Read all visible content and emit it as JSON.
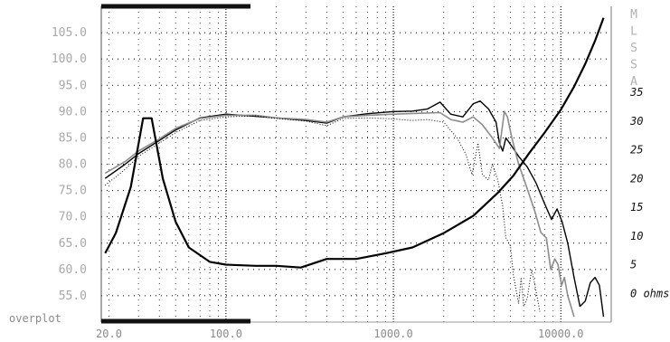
{
  "chart_data": {
    "type": "line",
    "xscale": "log",
    "xlim": [
      18,
      20000
    ],
    "ylim_left": [
      50,
      110
    ],
    "ylim_right_ohms": [
      -5,
      50
    ],
    "grid": true,
    "left_ticks": [
      "105.0",
      "100.0",
      "95.0",
      "90.0",
      "85.0",
      "80.0",
      "75.0",
      "70.0",
      "65.0",
      "60.0",
      "55.0"
    ],
    "left_tick_values": [
      105,
      100,
      95,
      90,
      85,
      80,
      75,
      70,
      65,
      60,
      55
    ],
    "right_ticks": [
      "35",
      "30",
      "25",
      "20",
      "15",
      "10",
      "5",
      "0 ohms"
    ],
    "right_tick_values": [
      35,
      30,
      25,
      20,
      15,
      10,
      5,
      0
    ],
    "x_ticks": [
      "20.0",
      "100.0",
      "1000.0",
      "10000.0"
    ],
    "x_tick_values": [
      20,
      100,
      1000,
      10000
    ],
    "side_label": [
      "M",
      "L",
      "S",
      "S",
      "A"
    ],
    "overplot_label": "overplot",
    "series": [
      {
        "style": "solid-black",
        "points": [
          [
            19,
            77.3
          ],
          [
            25,
            80
          ],
          [
            30,
            82
          ],
          [
            40,
            84.5
          ],
          [
            50,
            86.5
          ],
          [
            70,
            88.8
          ],
          [
            100,
            89.5
          ],
          [
            150,
            89.1
          ],
          [
            200,
            88.8
          ],
          [
            300,
            88.3
          ],
          [
            400,
            87.8
          ],
          [
            500,
            89
          ],
          [
            700,
            89.6
          ],
          [
            1000,
            90
          ],
          [
            1300,
            90.1
          ],
          [
            1600,
            90.5
          ],
          [
            1900,
            91.8
          ],
          [
            2200,
            89.5
          ],
          [
            2600,
            89
          ],
          [
            3000,
            91.5
          ],
          [
            3300,
            92
          ],
          [
            3700,
            90.5
          ],
          [
            4100,
            88
          ],
          [
            4300,
            84
          ],
          [
            4500,
            82.5
          ],
          [
            4700,
            85
          ],
          [
            5200,
            83
          ],
          [
            5600,
            81.5
          ],
          [
            6300,
            79.5
          ],
          [
            7100,
            76.5
          ],
          [
            8000,
            72.5
          ],
          [
            8800,
            69.5
          ],
          [
            9500,
            71.5
          ],
          [
            10200,
            69
          ],
          [
            11000,
            65
          ],
          [
            12000,
            58.5
          ],
          [
            13000,
            53
          ],
          [
            14000,
            54
          ],
          [
            15000,
            57.5
          ],
          [
            16000,
            58.5
          ],
          [
            17000,
            57
          ],
          [
            18000,
            51
          ]
        ]
      },
      {
        "style": "solid-gray",
        "points": [
          [
            19,
            78.3
          ],
          [
            25,
            80.5
          ],
          [
            30,
            82.5
          ],
          [
            40,
            84.8
          ],
          [
            50,
            86.8
          ],
          [
            70,
            88.7
          ],
          [
            100,
            89.3
          ],
          [
            150,
            89.3
          ],
          [
            200,
            88.8
          ],
          [
            300,
            88.5
          ],
          [
            400,
            88
          ],
          [
            500,
            89
          ],
          [
            700,
            89.3
          ],
          [
            1000,
            89.5
          ],
          [
            1500,
            89.7
          ],
          [
            1900,
            89.8
          ],
          [
            2200,
            88.5
          ],
          [
            2600,
            88
          ],
          [
            3000,
            89
          ],
          [
            3400,
            87.5
          ],
          [
            3900,
            85
          ],
          [
            4300,
            83
          ],
          [
            4600,
            90
          ],
          [
            4800,
            89
          ],
          [
            5100,
            85
          ],
          [
            5600,
            80
          ],
          [
            6200,
            76
          ],
          [
            7000,
            71
          ],
          [
            7600,
            67
          ],
          [
            8200,
            66
          ],
          [
            8700,
            60
          ],
          [
            9200,
            62
          ],
          [
            9600,
            61
          ],
          [
            10100,
            57
          ],
          [
            10500,
            58.5
          ],
          [
            11000,
            55
          ],
          [
            11500,
            53
          ],
          [
            12000,
            51
          ]
        ]
      },
      {
        "style": "dotted",
        "points": [
          [
            19,
            76
          ],
          [
            25,
            79
          ],
          [
            30,
            81.5
          ],
          [
            40,
            84
          ],
          [
            50,
            86
          ],
          [
            70,
            88.3
          ],
          [
            100,
            89
          ],
          [
            150,
            89.2
          ],
          [
            200,
            88.7
          ],
          [
            300,
            88.2
          ],
          [
            400,
            87.3
          ],
          [
            500,
            88.7
          ],
          [
            700,
            88.8
          ],
          [
            1000,
            88.6
          ],
          [
            1300,
            88.3
          ],
          [
            1600,
            88.5
          ],
          [
            2000,
            88
          ],
          [
            2400,
            85
          ],
          [
            2700,
            82
          ],
          [
            2950,
            78
          ],
          [
            3200,
            84
          ],
          [
            3400,
            78
          ],
          [
            3700,
            77
          ],
          [
            3900,
            80
          ],
          [
            4200,
            77
          ],
          [
            4500,
            72
          ],
          [
            4700,
            66
          ],
          [
            5000,
            64.5
          ],
          [
            5200,
            59
          ],
          [
            5600,
            53.5
          ],
          [
            5800,
            58.5
          ],
          [
            6000,
            53
          ],
          [
            6300,
            54.5
          ],
          [
            6700,
            60
          ],
          [
            7000,
            57
          ],
          [
            7500,
            52
          ]
        ]
      },
      {
        "style": "impedance",
        "points": [
          [
            19,
            7
          ],
          [
            22,
            10.5
          ],
          [
            27,
            18.5
          ],
          [
            32,
            30.5
          ],
          [
            36,
            30.5
          ],
          [
            42,
            20
          ],
          [
            50,
            12.5
          ],
          [
            60,
            8
          ],
          [
            80,
            5.5
          ],
          [
            100,
            5
          ],
          [
            150,
            4.8
          ],
          [
            200,
            4.8
          ],
          [
            280,
            4.5
          ],
          [
            400,
            6
          ],
          [
            600,
            6
          ],
          [
            900,
            7
          ],
          [
            1300,
            8
          ],
          [
            2000,
            10.5
          ],
          [
            3000,
            13.5
          ],
          [
            4200,
            17.5
          ],
          [
            5200,
            20.5
          ],
          [
            6500,
            24.5
          ],
          [
            8000,
            28
          ],
          [
            10000,
            32
          ],
          [
            12000,
            36
          ],
          [
            14000,
            40
          ],
          [
            16000,
            44
          ],
          [
            18000,
            48
          ]
        ]
      }
    ]
  }
}
